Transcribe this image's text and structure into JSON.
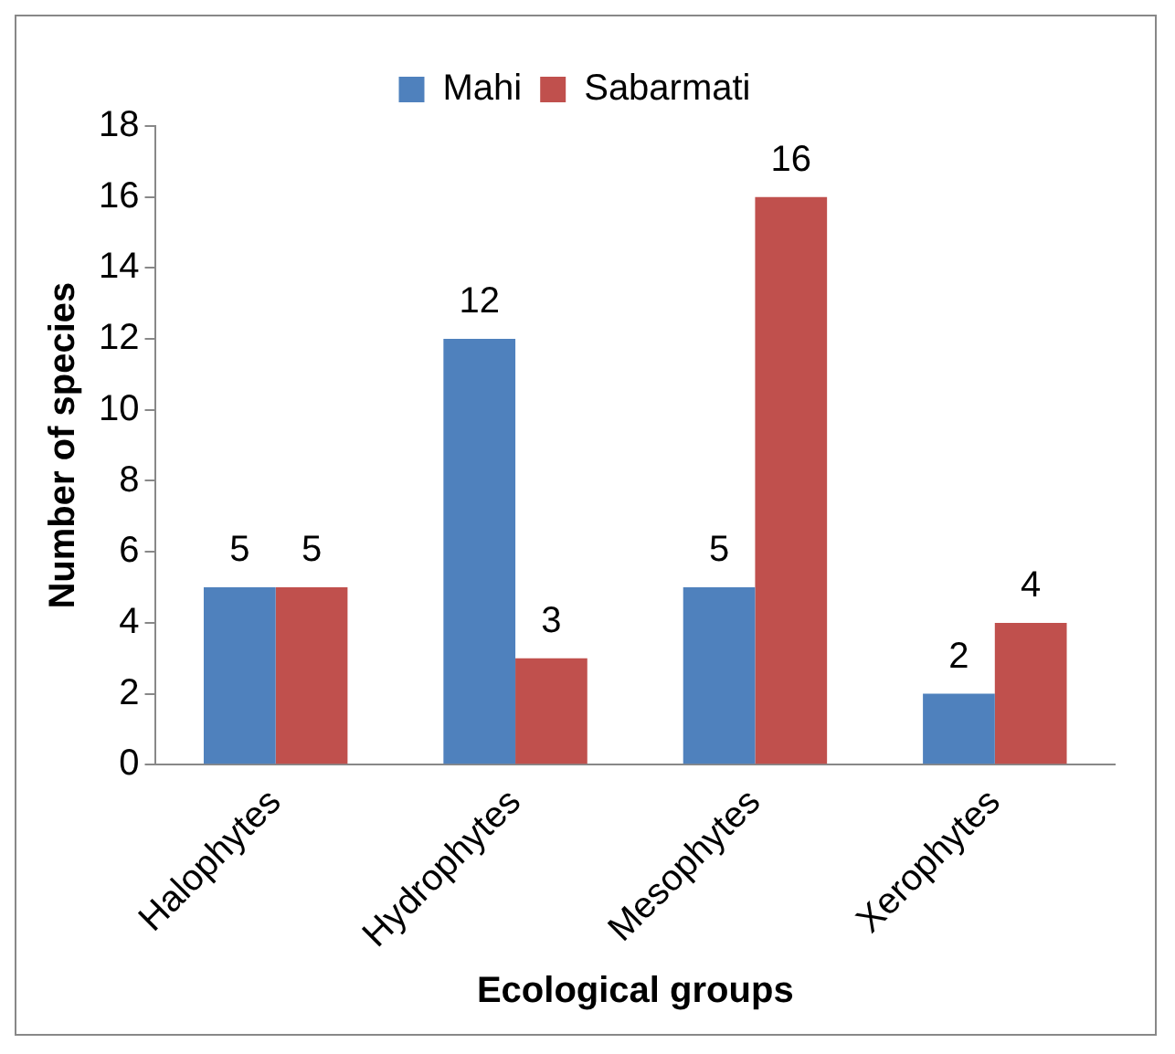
{
  "chart_data": {
    "type": "bar",
    "xlabel": "Ecological groups",
    "ylabel": "Number of species",
    "categories": [
      "Halophytes",
      "Hydrophytes",
      "Mesophytes",
      "Xerophytes"
    ],
    "series": [
      {
        "name": "Mahi",
        "color": "#4f81bd",
        "values": [
          5,
          12,
          5,
          2
        ]
      },
      {
        "name": "Sabarmati",
        "color": "#c0504d",
        "values": [
          5,
          3,
          16,
          4
        ]
      }
    ],
    "ylim": [
      0,
      18
    ],
    "yticks": [
      0,
      2,
      4,
      6,
      8,
      10,
      12,
      14,
      16,
      18
    ],
    "grid": false,
    "legend": "top",
    "data_labels": true
  }
}
